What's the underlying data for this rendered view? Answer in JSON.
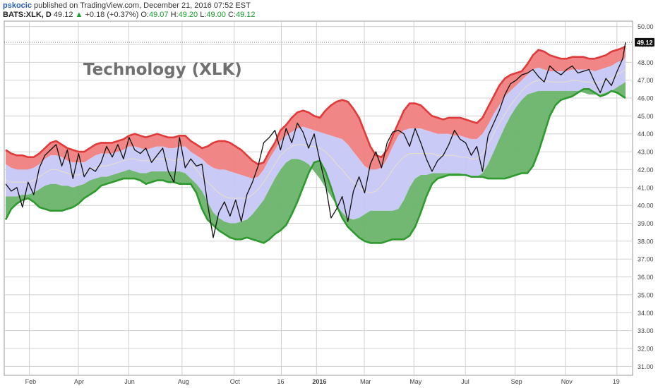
{
  "header": {
    "author": "pskocic",
    "published_text": "published on TradingView.com, December 21, 2016 07:52 EST",
    "symbol": "BATS:XLK, D",
    "last": "49.12",
    "change_arrow": "▲",
    "change": "+0.18 (+0.37%)",
    "o_label": "O:",
    "o_value": "49.07",
    "h_label": "H:",
    "h_value": "49.20",
    "l_label": "L:",
    "l_value": "49.00",
    "c_label": "C:",
    "c_value": "49.12"
  },
  "colors": {
    "upper_band_fill": "#f08080",
    "upper_band_line": "#e03a3a",
    "mid_band_fill": "#c7c7f5",
    "lower_band_fill": "#6ab46a",
    "lower_band_line": "#2e9a2e",
    "price_line": "#111111",
    "grid": "#d0d0d0",
    "annotation": "#707070",
    "up": "#1a9c2e"
  },
  "chart_data": {
    "type": "line",
    "title": "Technology (XLK)",
    "x_ticks": [
      "Feb",
      "Apr",
      "Jun",
      "Aug",
      "Oct",
      "16",
      "2016",
      "Mar",
      "May",
      "Jul",
      "Sep",
      "Nov",
      "19"
    ],
    "y_ticks": [
      "31.00",
      "32.00",
      "33.00",
      "34.00",
      "35.00",
      "36.00",
      "37.00",
      "38.00",
      "39.00",
      "40.00",
      "41.00",
      "42.00",
      "43.00",
      "44.00",
      "45.00",
      "46.00",
      "47.00",
      "48.00",
      "49.00",
      "50.00"
    ],
    "ylim": [
      30.5,
      50.3
    ],
    "last_price_label": "49.12",
    "last_price": 49.12,
    "grid": true,
    "x": [
      0,
      8,
      16,
      24,
      32,
      40,
      48,
      56,
      64,
      72,
      80,
      88,
      96,
      104,
      112,
      120,
      128,
      136,
      144,
      152,
      160,
      168,
      176,
      184,
      192,
      200,
      208,
      216,
      224,
      232,
      240,
      248,
      256,
      264,
      272,
      280,
      288,
      296,
      304,
      312,
      320,
      328,
      336,
      344,
      352,
      360,
      368,
      376,
      384,
      392,
      400,
      408,
      416,
      424,
      432,
      440,
      448,
      456,
      464,
      472,
      480,
      488,
      496,
      504,
      512,
      520,
      528,
      536,
      544,
      552,
      560,
      568,
      576,
      584,
      592,
      600,
      608,
      616,
      624,
      632,
      640,
      648,
      656,
      664,
      672,
      680,
      688,
      696,
      704,
      712,
      720,
      728,
      736,
      744,
      752,
      760,
      768,
      776,
      784,
      792,
      800,
      808,
      816,
      824,
      832,
      840,
      848,
      856,
      864,
      872,
      880,
      884
    ],
    "series": [
      {
        "name": "upper",
        "values": [
          43.1,
          42.9,
          42.8,
          42.8,
          42.7,
          42.7,
          42.9,
          43.2,
          43.5,
          43.6,
          43.4,
          43.2,
          43.1,
          43.0,
          43.0,
          43.2,
          43.4,
          43.5,
          43.5,
          43.5,
          43.6,
          43.7,
          43.9,
          44.0,
          43.9,
          43.8,
          43.9,
          44.0,
          43.9,
          43.8,
          43.8,
          43.9,
          43.9,
          43.6,
          43.4,
          43.2,
          43.3,
          43.5,
          43.6,
          43.6,
          43.5,
          43.3,
          43.1,
          42.8,
          42.5,
          42.3,
          42.4,
          43.0,
          43.5,
          44.2,
          44.5,
          44.9,
          45.2,
          45.3,
          45.2,
          45.0,
          44.9,
          45.3,
          45.6,
          45.8,
          45.9,
          45.8,
          45.4,
          44.9,
          44.1,
          43.3,
          42.8,
          42.7,
          43.1,
          43.9,
          44.6,
          45.3,
          45.7,
          45.7,
          45.6,
          45.3,
          45.0,
          44.9,
          44.8,
          44.9,
          44.9,
          44.9,
          44.8,
          44.7,
          44.6,
          44.9,
          45.5,
          46.1,
          46.7,
          47.1,
          47.3,
          47.4,
          47.5,
          47.9,
          48.4,
          48.7,
          48.6,
          48.4,
          48.3,
          48.2,
          48.2,
          48.3,
          48.3,
          48.3,
          48.2,
          48.2,
          48.3,
          48.4,
          48.6,
          48.7,
          48.8,
          48.9
        ]
      },
      {
        "name": "upper-mid",
        "values": [
          42.3,
          42.1,
          42.0,
          42.0,
          42.0,
          42.1,
          42.3,
          42.6,
          42.8,
          42.8,
          42.7,
          42.5,
          42.4,
          42.4,
          42.4,
          42.6,
          42.8,
          42.9,
          42.9,
          42.9,
          43.0,
          43.1,
          43.3,
          43.3,
          43.2,
          43.1,
          43.2,
          43.3,
          43.3,
          43.2,
          43.2,
          43.3,
          43.3,
          43.0,
          42.8,
          42.6,
          42.3,
          42.1,
          42.0,
          42.0,
          41.9,
          41.8,
          41.7,
          41.6,
          41.5,
          41.6,
          42.0,
          42.6,
          43.1,
          43.6,
          43.9,
          44.1,
          44.3,
          44.4,
          44.3,
          44.2,
          44.1,
          44.0,
          43.9,
          43.8,
          43.7,
          43.4,
          43.0,
          42.6,
          42.2,
          42.0,
          42.0,
          42.1,
          42.6,
          43.3,
          43.9,
          44.2,
          44.3,
          44.3,
          44.3,
          44.2,
          44.1,
          44.0,
          44.0,
          44.0,
          43.9,
          43.9,
          43.8,
          43.7,
          43.7,
          44.0,
          44.5,
          45.1,
          45.6,
          46.1,
          46.4,
          46.7,
          47.0,
          47.3,
          47.6,
          47.7,
          47.6,
          47.5,
          47.5,
          47.5,
          47.5,
          47.6,
          47.6,
          47.6,
          47.6,
          47.5,
          47.6,
          47.7,
          47.8,
          48.0,
          48.1,
          48.3
        ]
      },
      {
        "name": "mid",
        "values": [
          41.4,
          41.3,
          41.3,
          41.3,
          41.3,
          41.4,
          41.6,
          41.8,
          42.0,
          42.0,
          41.9,
          41.8,
          41.7,
          41.7,
          41.8,
          42.0,
          42.1,
          42.2,
          42.2,
          42.3,
          42.4,
          42.5,
          42.6,
          42.6,
          42.5,
          42.5,
          42.5,
          42.6,
          42.6,
          42.6,
          42.5,
          42.6,
          42.5,
          42.3,
          42.0,
          41.6,
          41.3,
          41.0,
          40.7,
          40.5,
          40.4,
          40.4,
          40.4,
          40.4,
          40.6,
          40.9,
          41.3,
          41.8,
          42.3,
          42.8,
          43.1,
          43.3,
          43.4,
          43.4,
          43.3,
          43.3,
          43.2,
          43.0,
          42.7,
          42.3,
          42.0,
          41.6,
          41.3,
          41.0,
          40.8,
          40.7,
          40.8,
          41.1,
          41.5,
          42.0,
          42.4,
          42.7,
          42.9,
          42.9,
          42.9,
          42.9,
          42.9,
          42.8,
          42.8,
          42.8,
          42.8,
          42.7,
          42.7,
          42.6,
          42.6,
          42.9,
          43.4,
          44.0,
          44.6,
          45.1,
          45.6,
          46.0,
          46.4,
          46.7,
          46.9,
          47.0,
          47.0,
          46.9,
          46.9,
          46.9,
          46.9,
          47.0,
          47.0,
          46.9,
          46.9,
          46.8,
          46.9,
          47.0,
          47.1,
          47.3,
          47.5,
          47.6
        ]
      },
      {
        "name": "lower-mid",
        "values": [
          40.5,
          40.5,
          40.5,
          40.6,
          40.6,
          40.7,
          40.9,
          41.1,
          41.2,
          41.2,
          41.1,
          41.1,
          41.0,
          41.1,
          41.2,
          41.4,
          41.5,
          41.6,
          41.6,
          41.7,
          41.8,
          41.9,
          42.0,
          41.9,
          41.8,
          41.8,
          41.9,
          41.9,
          41.9,
          41.9,
          41.9,
          41.9,
          41.8,
          41.5,
          41.2,
          40.8,
          40.2,
          39.6,
          39.3,
          39.1,
          39.0,
          39.0,
          39.1,
          39.2,
          39.5,
          39.9,
          40.3,
          40.9,
          41.5,
          42.0,
          42.4,
          42.6,
          42.6,
          42.5,
          42.3,
          41.9,
          41.5,
          41.0,
          40.5,
          40.0,
          39.6,
          39.3,
          39.2,
          39.3,
          39.5,
          39.7,
          39.7,
          39.7,
          39.7,
          39.7,
          39.8,
          40.3,
          41.0,
          41.5,
          41.7,
          41.7,
          41.8,
          41.8,
          41.8,
          41.8,
          41.8,
          41.8,
          41.7,
          41.6,
          41.6,
          41.8,
          42.3,
          43.0,
          43.7,
          44.4,
          45.0,
          45.5,
          45.9,
          46.2,
          46.3,
          46.4,
          46.4,
          46.4,
          46.4,
          46.4,
          46.4,
          46.4,
          46.4,
          46.3,
          46.2,
          46.2,
          46.2,
          46.3,
          46.4,
          46.6,
          46.8,
          46.9
        ]
      },
      {
        "name": "lower",
        "values": [
          39.2,
          39.8,
          40.1,
          40.3,
          40.4,
          40.2,
          39.9,
          39.8,
          39.7,
          39.7,
          39.7,
          39.8,
          39.9,
          40.1,
          40.4,
          40.6,
          40.8,
          41.1,
          41.2,
          41.3,
          41.4,
          41.5,
          41.5,
          41.5,
          41.4,
          41.2,
          41.3,
          41.4,
          41.4,
          41.3,
          41.3,
          41.2,
          41.2,
          41.2,
          40.7,
          39.8,
          39.2,
          38.9,
          38.6,
          38.4,
          38.2,
          38.1,
          38.1,
          38.2,
          38.1,
          38.0,
          37.9,
          38.1,
          38.4,
          38.6,
          38.9,
          39.5,
          40.2,
          41.0,
          41.8,
          42.4,
          42.5,
          41.9,
          41.0,
          40.0,
          39.3,
          38.8,
          38.5,
          38.2,
          38.0,
          37.9,
          37.9,
          37.9,
          38.0,
          38.1,
          38.1,
          38.1,
          38.3,
          38.8,
          39.6,
          40.5,
          41.2,
          41.5,
          41.6,
          41.7,
          41.7,
          41.7,
          41.7,
          41.6,
          41.6,
          41.6,
          41.5,
          41.5,
          41.5,
          41.5,
          41.6,
          41.7,
          41.8,
          41.8,
          42.2,
          43.0,
          44.0,
          45.0,
          45.6,
          45.9,
          46.0,
          46.1,
          46.3,
          46.5,
          46.5,
          46.3,
          46.1,
          46.2,
          46.4,
          46.3,
          46.1,
          46.0
        ]
      },
      {
        "name": "price",
        "values": [
          41.2,
          40.8,
          41.0,
          39.9,
          41.3,
          40.6,
          42.1,
          42.8,
          43.1,
          43.4,
          42.2,
          43.1,
          41.5,
          42.9,
          41.6,
          42.1,
          41.9,
          42.4,
          43.3,
          42.7,
          43.4,
          42.6,
          43.8,
          43.1,
          42.9,
          43.2,
          42.4,
          42.8,
          43.2,
          41.9,
          41.3,
          43.8,
          42.1,
          42.6,
          42.2,
          42.3,
          40.1,
          38.2,
          39.6,
          40.2,
          39.4,
          40.3,
          39.1,
          40.6,
          41.3,
          42.2,
          43.5,
          43.8,
          44.2,
          43.1,
          44.3,
          43.5,
          44.6,
          44.1,
          43.2,
          44.0,
          42.5,
          41.2,
          39.3,
          39.8,
          40.5,
          39.1,
          40.8,
          41.6,
          40.7,
          42.3,
          43.0,
          42.1,
          43.5,
          44.1,
          44.2,
          44.0,
          43.3,
          44.3,
          43.5,
          42.6,
          41.9,
          42.5,
          42.8,
          43.4,
          44.2,
          43.7,
          43.5,
          42.8,
          43.3,
          41.9,
          43.9,
          44.6,
          45.3,
          46.2,
          46.8,
          47.0,
          47.3,
          47.4,
          47.6,
          47.2,
          46.9,
          47.8,
          47.5,
          47.3,
          47.6,
          47.8,
          47.4,
          47.5,
          47.6,
          46.9,
          46.3,
          47.1,
          46.7,
          47.5,
          48.2,
          49.12
        ]
      }
    ]
  }
}
